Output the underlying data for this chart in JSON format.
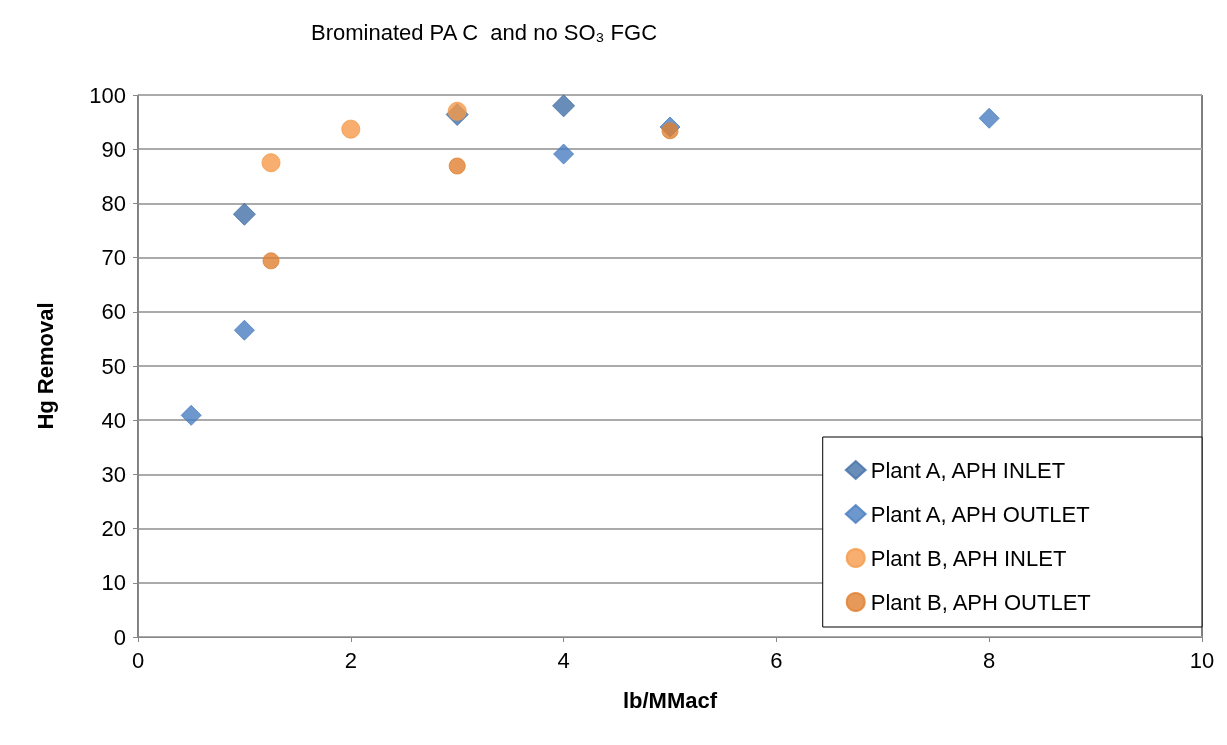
{
  "chart_data": {
    "type": "scatter",
    "title": "Brominated PA C  and no SO₃ FGC",
    "xlabel": "lb/MMacf",
    "ylabel": "Hg Removal",
    "xlim": [
      0,
      10
    ],
    "xticks": [
      0,
      2,
      4,
      6,
      8,
      10
    ],
    "ylim": [
      0,
      100
    ],
    "yticks": [
      0,
      10,
      20,
      30,
      40,
      50,
      60,
      70,
      80,
      90,
      100
    ],
    "grid": "y",
    "legend": "bottom right",
    "series": [
      {
        "name": "Plant A, APH INLET",
        "color": "#4470a8",
        "marker": "diamond",
        "x": [
          1,
          3,
          4
        ],
        "values": [
          78,
          96.4,
          98
        ]
      },
      {
        "name": "Plant A, APH OUTLET",
        "color": "#4a7ec0",
        "marker": "diamond",
        "x": [
          0.5,
          1,
          4,
          5,
          8
        ],
        "values": [
          40.9,
          56.6,
          89.1,
          94.1,
          95.7
        ]
      },
      {
        "name": "Plant B, APH INLET",
        "color": "#f59a4a",
        "marker": "circle",
        "x": [
          1.25,
          2,
          3
        ],
        "values": [
          87.5,
          93.7,
          97
        ]
      },
      {
        "name": "Plant B, APH OUTLET",
        "color": "#e0802e",
        "marker": "circle",
        "x": [
          1.25,
          3,
          5
        ],
        "values": [
          69.4,
          86.9,
          93.4
        ]
      }
    ]
  }
}
